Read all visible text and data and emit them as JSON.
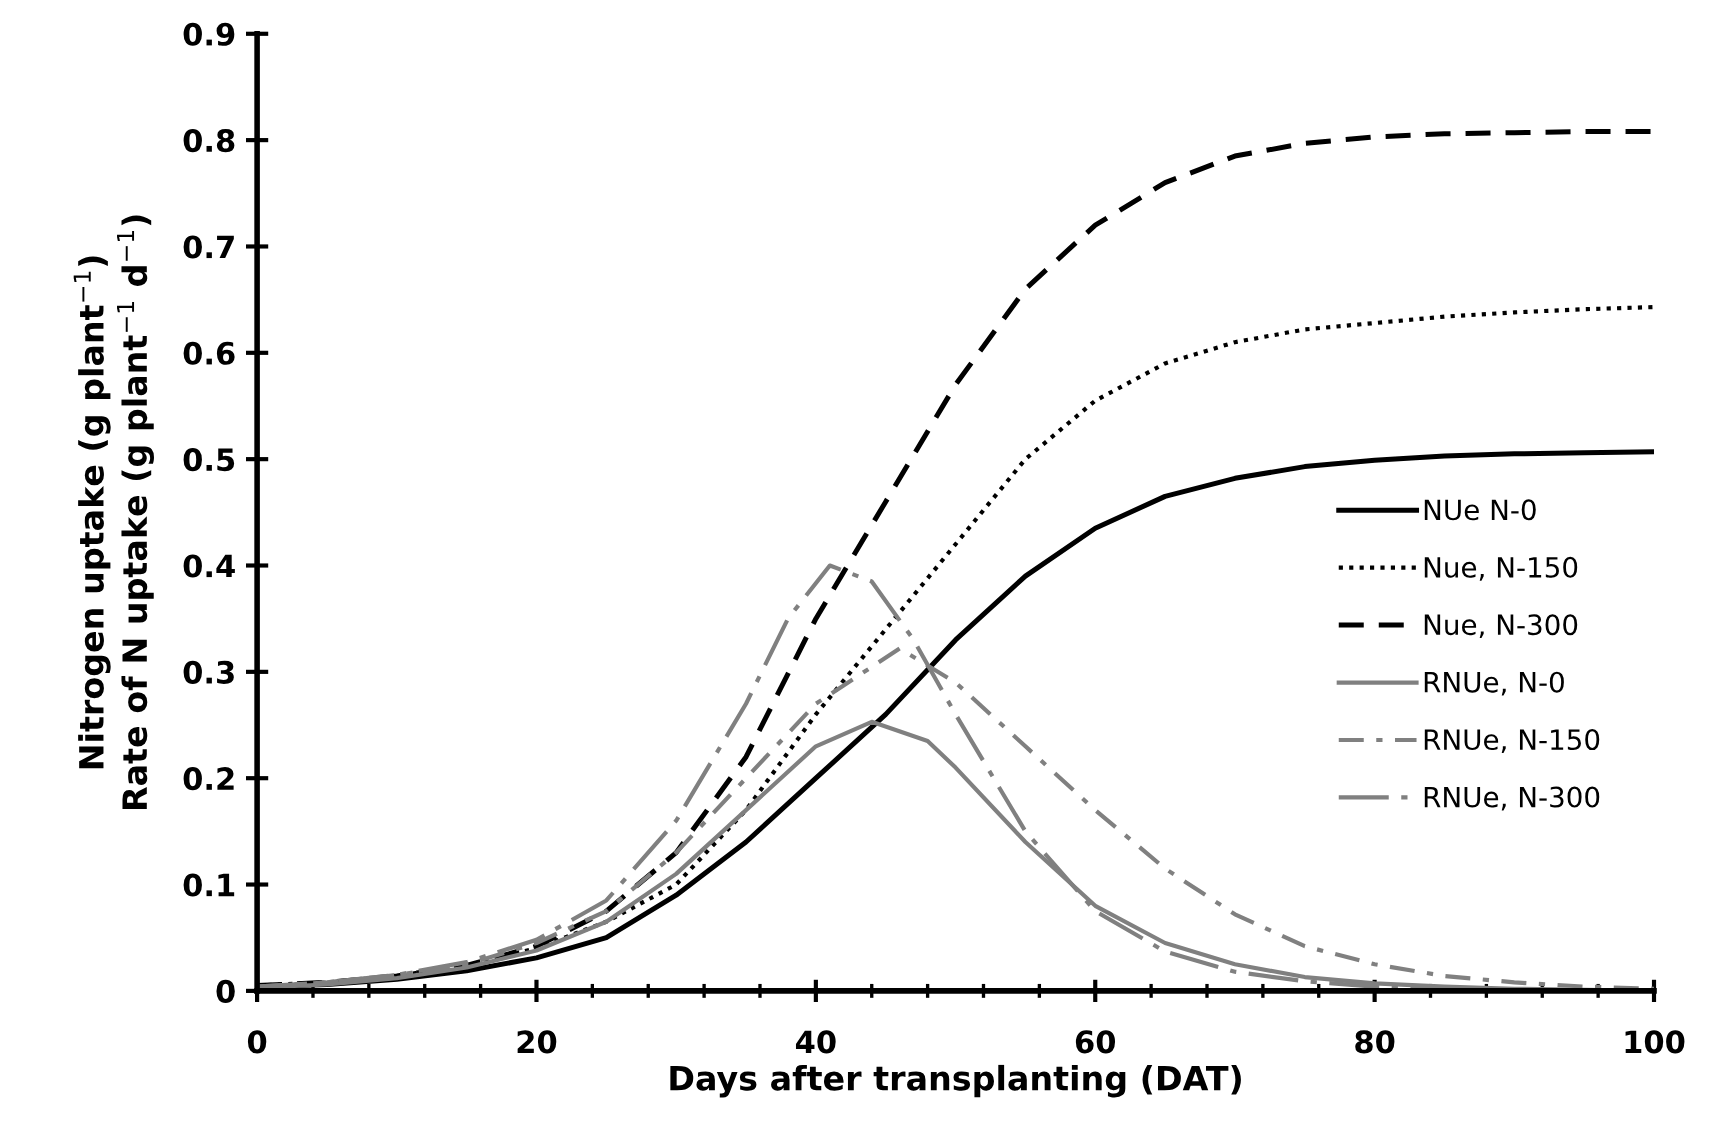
{
  "chart_data": {
    "type": "line",
    "xlabel": "Days after transplanting (DAT)",
    "ylabel": "Nitrogen uptake (g plant$^{−1}$)\nRate of N uptake (g plant$^{−1}$ d$^{−1}$)",
    "xlim": [
      0,
      100
    ],
    "ylim": [
      0,
      0.9
    ],
    "xticks": [
      0,
      {
        "value": 4,
        "label": null
      },
      {
        "value": 8,
        "label": null
      },
      {
        "value": 12,
        "label": null
      },
      {
        "value": 16,
        "label": null
      },
      20,
      {
        "value": 24,
        "label": null
      },
      {
        "value": 28,
        "label": null
      },
      {
        "value": 32,
        "label": null
      },
      {
        "value": 36,
        "label": null
      },
      40,
      {
        "value": 44,
        "label": null
      },
      {
        "value": 48,
        "label": null
      },
      {
        "value": 52,
        "label": null
      },
      {
        "value": 56,
        "label": null
      },
      60,
      {
        "value": 64,
        "label": null
      },
      {
        "value": 68,
        "label": null
      },
      {
        "value": 72,
        "label": null
      },
      {
        "value": 76,
        "label": null
      },
      80,
      {
        "value": 84,
        "label": null
      },
      {
        "value": 88,
        "label": null
      },
      {
        "value": 92,
        "label": null
      },
      {
        "value": 96,
        "label": null
      },
      100
    ],
    "yticks": [
      0,
      0.1,
      0.2,
      0.3,
      0.4,
      0.5,
      0.6,
      0.7,
      0.8,
      0.9
    ],
    "grid": false,
    "legend": "right",
    "marker": "none",
    "series": [
      {
        "name": "NUe N-0",
        "color": "#000000",
        "line_style": "solid",
        "x": [
          0,
          5,
          10,
          15,
          20,
          25,
          30,
          35,
          40,
          45,
          50,
          55,
          60,
          65,
          70,
          75,
          80,
          85,
          90,
          95,
          100
        ],
        "values": [
          0.004,
          0.006,
          0.011,
          0.019,
          0.031,
          0.05,
          0.09,
          0.14,
          0.2,
          0.26,
          0.33,
          0.39,
          0.435,
          0.465,
          0.482,
          0.493,
          0.499,
          0.503,
          0.505,
          0.506,
          0.507
        ]
      },
      {
        "name": "Nue, N-150",
        "color": "#000000",
        "line_style": "dotted",
        "x": [
          0,
          5,
          10,
          15,
          20,
          25,
          30,
          35,
          40,
          45,
          50,
          55,
          60,
          65,
          70,
          75,
          80,
          85,
          90,
          95,
          100
        ],
        "values": [
          0.005,
          0.008,
          0.014,
          0.024,
          0.04,
          0.065,
          0.1,
          0.17,
          0.26,
          0.34,
          0.42,
          0.5,
          0.555,
          0.59,
          0.61,
          0.622,
          0.628,
          0.634,
          0.638,
          0.641,
          0.643
        ]
      },
      {
        "name": "Nue, N-300",
        "color": "#000000",
        "line_style": "dashed",
        "x": [
          0,
          5,
          10,
          15,
          20,
          25,
          30,
          35,
          40,
          45,
          50,
          55,
          60,
          65,
          70,
          75,
          80,
          85,
          90,
          95,
          100
        ],
        "values": [
          0.005,
          0.008,
          0.014,
          0.024,
          0.042,
          0.075,
          0.13,
          0.22,
          0.35,
          0.46,
          0.57,
          0.66,
          0.72,
          0.76,
          0.785,
          0.797,
          0.803,
          0.806,
          0.807,
          0.808,
          0.808
        ]
      },
      {
        "name": "RNUe, N-0",
        "color": "#808080",
        "line_style": "solid",
        "x": [
          0,
          5,
          10,
          15,
          20,
          25,
          30,
          35,
          40,
          44,
          48,
          50,
          55,
          60,
          65,
          70,
          75,
          80,
          85,
          90,
          95,
          100
        ],
        "values": [
          0.003,
          0.006,
          0.012,
          0.022,
          0.038,
          0.065,
          0.11,
          0.17,
          0.23,
          0.253,
          0.235,
          0.21,
          0.14,
          0.08,
          0.045,
          0.025,
          0.013,
          0.007,
          0.004,
          0.002,
          0.001,
          0.0
        ]
      },
      {
        "name": "RNUe, N-150",
        "color": "#808080",
        "line_style": "dashdot",
        "x": [
          0,
          5,
          10,
          15,
          20,
          25,
          30,
          35,
          40,
          46,
          50,
          55,
          60,
          65,
          70,
          75,
          80,
          85,
          90,
          95,
          100
        ],
        "values": [
          0.004,
          0.008,
          0.015,
          0.025,
          0.045,
          0.075,
          0.13,
          0.2,
          0.27,
          0.322,
          0.29,
          0.23,
          0.17,
          0.115,
          0.072,
          0.042,
          0.025,
          0.014,
          0.008,
          0.004,
          0.002
        ]
      },
      {
        "name": "RNUe, N-300",
        "color": "#808080",
        "line_style": "longdashdot",
        "x": [
          0,
          5,
          10,
          15,
          20,
          25,
          30,
          35,
          38,
          41,
          44,
          47,
          50,
          55,
          60,
          65,
          70,
          75,
          80,
          85,
          90,
          95,
          100
        ],
        "values": [
          0.004,
          0.008,
          0.015,
          0.027,
          0.048,
          0.085,
          0.16,
          0.27,
          0.35,
          0.4,
          0.385,
          0.33,
          0.26,
          0.15,
          0.075,
          0.037,
          0.018,
          0.009,
          0.004,
          0.002,
          0.001,
          0.0,
          0.0
        ]
      }
    ]
  }
}
